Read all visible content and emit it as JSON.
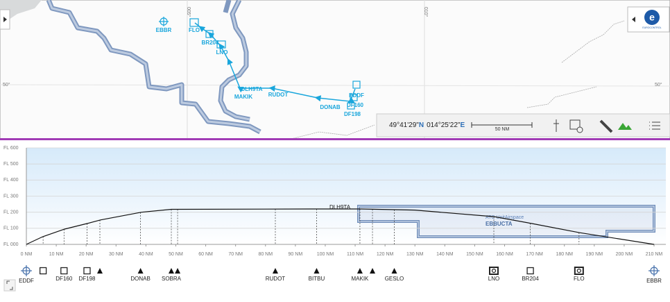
{
  "map": {
    "meridian_labels": [
      "005°",
      "010°"
    ],
    "parallel_labels": [
      "50°",
      "50°"
    ],
    "points": [
      "EBBR",
      "FLO",
      "BR204",
      "LNO",
      "DLH9TA",
      "MAKIK",
      "RUDOT",
      "DONAB",
      "EDDF",
      "DF160",
      "DF198"
    ],
    "coordinates": {
      "lat": "49°41'29\"",
      "lat_hemisphere": "N",
      "lon": "014°25'22\"",
      "lon_hemisphere": "E"
    },
    "scale_label": "50 NM",
    "logo": "EUROCONTROL"
  },
  "profile": {
    "xlim": [
      0,
      210
    ],
    "ylim": [
      0,
      600
    ],
    "xticks": [
      {
        "value": 0,
        "label": "0 NM"
      },
      {
        "value": 10,
        "label": "10 NM"
      },
      {
        "value": 20,
        "label": "20 NM"
      },
      {
        "value": 30,
        "label": "30 NM"
      },
      {
        "value": 40,
        "label": "40 NM"
      },
      {
        "value": 50,
        "label": "50 NM"
      },
      {
        "value": 60,
        "label": "60 NM"
      },
      {
        "value": 70,
        "label": "70 NM"
      },
      {
        "value": 80,
        "label": "80 NM"
      },
      {
        "value": 90,
        "label": "90 NM"
      },
      {
        "value": 100,
        "label": "100 NM"
      },
      {
        "value": 110,
        "label": "110 NM"
      },
      {
        "value": 120,
        "label": "120 NM"
      },
      {
        "value": 130,
        "label": "130 NM"
      },
      {
        "value": 140,
        "label": "140 NM"
      },
      {
        "value": 150,
        "label": "150 NM"
      },
      {
        "value": 160,
        "label": "160 NM"
      },
      {
        "value": 170,
        "label": "170 NM"
      },
      {
        "value": 180,
        "label": "180 NM"
      },
      {
        "value": 190,
        "label": "190 NM"
      },
      {
        "value": 200,
        "label": "200 NM"
      },
      {
        "value": 210,
        "label": "210 NM"
      }
    ],
    "yticks": [
      {
        "value": 0,
        "label": "FL 000"
      },
      {
        "value": 100,
        "label": "FL 100"
      },
      {
        "value": 200,
        "label": "FL 200"
      },
      {
        "value": 300,
        "label": "FL 300"
      },
      {
        "value": 400,
        "label": "FL 400"
      },
      {
        "value": 500,
        "label": "FL 500"
      },
      {
        "value": 600,
        "label": "FL 600"
      }
    ],
    "flight": "DLH9TA",
    "line": {
      "x": [
        0,
        5.5,
        12.8,
        20.4,
        24.8,
        38.5,
        48.5,
        95,
        112,
        130,
        156.6,
        169,
        185,
        210
      ],
      "y": [
        0,
        48,
        95,
        130,
        152,
        200,
        218,
        220,
        220,
        213,
        172,
        130,
        73,
        0
      ]
    },
    "airspace": {
      "type_label": "ATC UnitAirspace",
      "name": "EBBUCTA"
    },
    "waypoints": {
      "distance": [
        0,
        5.6,
        12.6,
        20.3,
        24.6,
        38.2,
        48.5,
        50.6,
        83.3,
        97.1,
        111.6,
        115.8,
        123.1,
        156.4,
        168.6,
        184.9,
        210
      ],
      "names": [
        "EDDF",
        null,
        "DF160",
        "DF198",
        null,
        "DONAB",
        "SOBRA",
        null,
        "RUDOT",
        "BITBU",
        "MAKIK",
        null,
        "GESLO",
        "LNO",
        "BR204",
        "FLO",
        "EBBR"
      ],
      "symbols": [
        "airport",
        "fix",
        "fix",
        "fix",
        "waypoint",
        "waypoint",
        "waypoint",
        "waypoint",
        "waypoint",
        "waypoint",
        "waypoint",
        "waypoint",
        "waypoint",
        "vor",
        "fix",
        "vor",
        "airport"
      ]
    }
  }
}
